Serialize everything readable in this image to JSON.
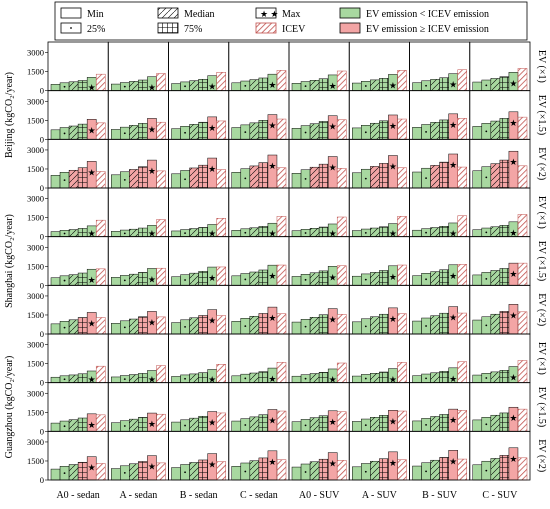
{
  "chart_data": {
    "type": "bar",
    "legend": {
      "position": "top",
      "items": [
        {
          "label": "Min",
          "pattern": "none"
        },
        {
          "label": "Median",
          "pattern": "diag"
        },
        {
          "label": "Max",
          "pattern": "star"
        },
        {
          "label": "EV emission < ICEV emission",
          "pattern": "fill-green"
        },
        {
          "label": "25%",
          "pattern": "dot"
        },
        {
          "label": "75%",
          "pattern": "grid"
        },
        {
          "label": "ICEV",
          "pattern": "hatch"
        },
        {
          "label": "EV emission ≥ ICEV emission",
          "pattern": "fill-red"
        }
      ]
    },
    "colors": {
      "green": "#a8d8a0",
      "red": "#f3a5a5",
      "icev_hatch": "#c0504d",
      "frame": "#000000"
    },
    "columns": [
      "A0 - sedan",
      "A - sedan",
      "B - sedan",
      "C - sedan",
      "A0 - SUV",
      "A - SUV",
      "B - SUV",
      "C - SUV"
    ],
    "row_labels": [
      "EV (×1)",
      "EV (×1.5)",
      "EV (×2)",
      "EV (×1)",
      "EV (×1.5)",
      "EV (×2)",
      "EV (×1)",
      "EV (×1.5)",
      "EV (×2)"
    ],
    "city_labels": [
      "Beijing (kgCO₂/year)",
      "Shanghai (kgCO₂/year)",
      "Guangzhou (kgCO₂/year)"
    ],
    "y_ticks": [
      "0",
      "1500",
      "3000"
    ],
    "ylim": [
      0,
      3600
    ],
    "bar_order": [
      "Min",
      "25%",
      "Median",
      "75%",
      "Max",
      "ICEV"
    ],
    "icev": [
      1300,
      1350,
      1450,
      1600,
      1550,
      1600,
      1650,
      1750
    ],
    "rows": [
      {
        "city": "Beijing",
        "factor": "EV (×1)",
        "panels": [
          [
            500,
            620,
            700,
            800,
            1050,
            1300
          ],
          [
            520,
            640,
            730,
            840,
            1100,
            1350
          ],
          [
            560,
            690,
            790,
            900,
            1180,
            1450
          ],
          [
            620,
            760,
            870,
            1000,
            1300,
            1600
          ],
          [
            580,
            720,
            820,
            940,
            1240,
            1550
          ],
          [
            600,
            740,
            850,
            970,
            1280,
            1600
          ],
          [
            630,
            780,
            890,
            1020,
            1340,
            1650
          ],
          [
            680,
            840,
            960,
            1100,
            1450,
            1750
          ]
        ]
      },
      {
        "city": "Beijing",
        "factor": "EV (×1.5)",
        "panels": [
          [
            750,
            930,
            1050,
            1200,
            1580,
            1300
          ],
          [
            780,
            960,
            1100,
            1260,
            1650,
            1350
          ],
          [
            840,
            1030,
            1180,
            1350,
            1770,
            1450
          ],
          [
            930,
            1140,
            1300,
            1500,
            1950,
            1600
          ],
          [
            870,
            1080,
            1230,
            1410,
            1860,
            1550
          ],
          [
            900,
            1110,
            1270,
            1460,
            1920,
            1600
          ],
          [
            950,
            1170,
            1340,
            1530,
            2010,
            1650
          ],
          [
            1020,
            1260,
            1440,
            1650,
            2170,
            1750
          ]
        ]
      },
      {
        "city": "Beijing",
        "factor": "EV (×2)",
        "panels": [
          [
            1000,
            1240,
            1400,
            1600,
            2100,
            1300
          ],
          [
            1040,
            1280,
            1460,
            1680,
            2200,
            1350
          ],
          [
            1120,
            1380,
            1580,
            1800,
            2360,
            1450
          ],
          [
            1240,
            1520,
            1740,
            2000,
            2600,
            1600
          ],
          [
            1160,
            1440,
            1640,
            1880,
            2480,
            1550
          ],
          [
            1200,
            1480,
            1700,
            1940,
            2560,
            1600
          ],
          [
            1260,
            1560,
            1780,
            2040,
            2680,
            1650
          ],
          [
            1360,
            1680,
            1920,
            2200,
            2900,
            1750
          ]
        ]
      },
      {
        "city": "Shanghai",
        "factor": "EV (×1)",
        "panels": [
          [
            400,
            500,
            560,
            650,
            850,
            1300
          ],
          [
            420,
            520,
            590,
            680,
            890,
            1350
          ],
          [
            450,
            560,
            640,
            730,
            960,
            1450
          ],
          [
            500,
            620,
            700,
            810,
            1060,
            1600
          ],
          [
            470,
            580,
            660,
            760,
            1000,
            1550
          ],
          [
            480,
            600,
            680,
            780,
            1030,
            1600
          ],
          [
            510,
            630,
            720,
            820,
            1080,
            1650
          ],
          [
            550,
            680,
            780,
            890,
            1170,
            1750
          ]
        ]
      },
      {
        "city": "Shanghai",
        "factor": "EV (×1.5)",
        "panels": [
          [
            600,
            750,
            840,
            970,
            1270,
            1300
          ],
          [
            630,
            780,
            880,
            1020,
            1330,
            1350
          ],
          [
            680,
            840,
            960,
            1100,
            1440,
            1450
          ],
          [
            750,
            930,
            1050,
            1210,
            1590,
            1600
          ],
          [
            700,
            870,
            990,
            1140,
            1500,
            1550
          ],
          [
            720,
            900,
            1020,
            1170,
            1540,
            1600
          ],
          [
            760,
            950,
            1080,
            1230,
            1620,
            1650
          ],
          [
            820,
            1020,
            1170,
            1330,
            1750,
            1750
          ]
        ]
      },
      {
        "city": "Shanghai",
        "factor": "EV (×2)",
        "panels": [
          [
            800,
            1000,
            1120,
            1300,
            1700,
            1300
          ],
          [
            840,
            1040,
            1180,
            1360,
            1780,
            1350
          ],
          [
            900,
            1120,
            1280,
            1460,
            1920,
            1450
          ],
          [
            1000,
            1240,
            1400,
            1620,
            2120,
            1600
          ],
          [
            940,
            1160,
            1320,
            1520,
            2000,
            1550
          ],
          [
            960,
            1200,
            1360,
            1560,
            2060,
            1600
          ],
          [
            1020,
            1260,
            1440,
            1640,
            2160,
            1650
          ],
          [
            1100,
            1360,
            1560,
            1780,
            2340,
            1750
          ]
        ]
      },
      {
        "city": "Guangzhou",
        "factor": "EV (×1)",
        "panels": [
          [
            430,
            540,
            610,
            700,
            920,
            1300
          ],
          [
            450,
            560,
            640,
            730,
            960,
            1350
          ],
          [
            490,
            610,
            690,
            790,
            1040,
            1450
          ],
          [
            540,
            670,
            760,
            870,
            1150,
            1600
          ],
          [
            510,
            630,
            720,
            820,
            1080,
            1550
          ],
          [
            520,
            650,
            740,
            840,
            1110,
            1600
          ],
          [
            550,
            680,
            780,
            890,
            1170,
            1650
          ],
          [
            600,
            740,
            850,
            970,
            1270,
            1750
          ]
        ]
      },
      {
        "city": "Guangzhou",
        "factor": "EV (×1.5)",
        "panels": [
          [
            650,
            810,
            920,
            1050,
            1380,
            1300
          ],
          [
            680,
            840,
            960,
            1100,
            1440,
            1350
          ],
          [
            730,
            910,
            1040,
            1190,
            1560,
            1450
          ],
          [
            810,
            1000,
            1140,
            1310,
            1720,
            1600
          ],
          [
            760,
            940,
            1080,
            1230,
            1620,
            1550
          ],
          [
            780,
            970,
            1110,
            1260,
            1660,
            1600
          ],
          [
            820,
            1020,
            1170,
            1330,
            1750,
            1650
          ],
          [
            900,
            1110,
            1270,
            1450,
            1900,
            1750
          ]
        ]
      },
      {
        "city": "Guangzhou",
        "factor": "EV (×2)",
        "panels": [
          [
            860,
            1080,
            1220,
            1400,
            1840,
            1300
          ],
          [
            900,
            1120,
            1280,
            1460,
            1920,
            1350
          ],
          [
            980,
            1220,
            1380,
            1580,
            2080,
            1450
          ],
          [
            1080,
            1340,
            1520,
            1740,
            2300,
            1600
          ],
          [
            1020,
            1260,
            1440,
            1640,
            2160,
            1550
          ],
          [
            1040,
            1300,
            1480,
            1680,
            2220,
            1600
          ],
          [
            1100,
            1360,
            1560,
            1780,
            2340,
            1650
          ],
          [
            1200,
            1480,
            1700,
            1940,
            2540,
            1750
          ]
        ]
      }
    ]
  }
}
